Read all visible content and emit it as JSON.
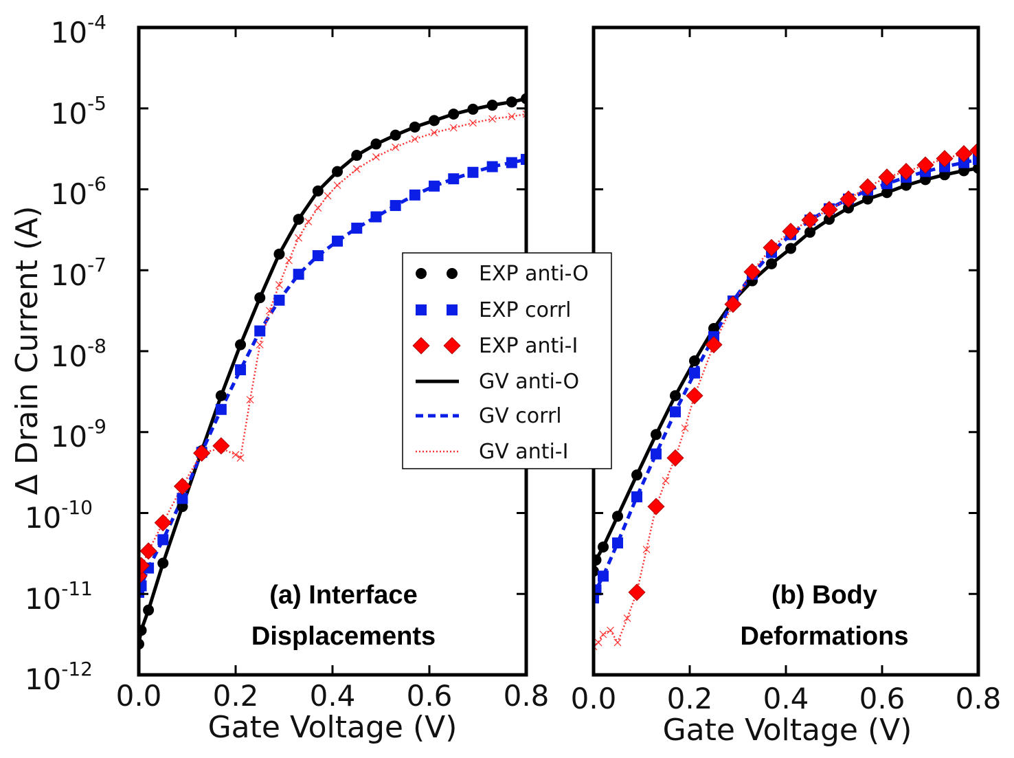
{
  "chart_data": [
    {
      "type": "line",
      "panel": "a",
      "title": "",
      "annotation": [
        "(a) Interface",
        "Displacements"
      ],
      "xlabel": "Gate Voltage (V)",
      "ylabel": "Δ Drain Current (A)",
      "xlim": [
        0.0,
        0.8
      ],
      "ylim_log10": [
        -12,
        -4
      ],
      "yscale": "log",
      "xticks": [
        "0.0",
        "0.2",
        "0.4",
        "0.6",
        "0.8"
      ],
      "yticks": [
        {
          "base": "10",
          "exp": "-4",
          "value": -4
        },
        {
          "base": "10",
          "exp": "-5",
          "value": -5
        },
        {
          "base": "10",
          "exp": "-6",
          "value": -6
        },
        {
          "base": "10",
          "exp": "-7",
          "value": -7
        },
        {
          "base": "10",
          "exp": "-8",
          "value": -8
        },
        {
          "base": "10",
          "exp": "-9",
          "value": -9
        },
        {
          "base": "10",
          "exp": "-10",
          "value": -10
        },
        {
          "base": "10",
          "exp": "-11",
          "value": -11
        },
        {
          "base": "10",
          "exp": "-12",
          "value": -12
        }
      ],
      "series": [
        {
          "name": "EXP anti-O",
          "kind": "markers",
          "marker": "circle",
          "color": "#000000",
          "x": [
            0.0,
            0.005,
            0.02,
            0.05,
            0.09,
            0.13,
            0.17,
            0.21,
            0.25,
            0.29,
            0.33,
            0.37,
            0.41,
            0.45,
            0.49,
            0.53,
            0.57,
            0.61,
            0.65,
            0.69,
            0.73,
            0.77,
            0.8
          ],
          "log10y": [
            -11.62,
            -11.45,
            -11.2,
            -10.62,
            -9.92,
            -9.23,
            -8.55,
            -7.92,
            -7.34,
            -6.8,
            -6.37,
            -6.02,
            -5.78,
            -5.58,
            -5.44,
            -5.33,
            -5.23,
            -5.15,
            -5.07,
            -5.01,
            -4.96,
            -4.92,
            -4.88
          ]
        },
        {
          "name": "EXP corrl",
          "kind": "markers",
          "marker": "square",
          "color": "#0b1ee6",
          "x": [
            0.0,
            0.005,
            0.02,
            0.05,
            0.09,
            0.13,
            0.17,
            0.21,
            0.25,
            0.29,
            0.33,
            0.37,
            0.41,
            0.45,
            0.49,
            0.53,
            0.57,
            0.61,
            0.65,
            0.69,
            0.73,
            0.77,
            0.8
          ],
          "log10y": [
            -10.98,
            -10.9,
            -10.68,
            -10.33,
            -9.82,
            -9.25,
            -8.72,
            -8.23,
            -7.75,
            -7.37,
            -7.05,
            -6.82,
            -6.64,
            -6.48,
            -6.34,
            -6.2,
            -6.07,
            -5.96,
            -5.87,
            -5.79,
            -5.72,
            -5.67,
            -5.63
          ]
        },
        {
          "name": "EXP anti-I",
          "kind": "markers",
          "marker": "diamond",
          "color": "#ff0000",
          "x": [
            0.0,
            0.005,
            0.02,
            0.05,
            0.09,
            0.13,
            0.17
          ],
          "log10y": [
            -10.78,
            -10.65,
            -10.47,
            -10.12,
            -9.67,
            -9.26,
            -9.17
          ]
        },
        {
          "name": "GV anti-O",
          "kind": "line",
          "style": "solid",
          "color": "#000000",
          "x": [
            0.0,
            0.005,
            0.02,
            0.05,
            0.09,
            0.13,
            0.17,
            0.21,
            0.25,
            0.29,
            0.33,
            0.37,
            0.41,
            0.45,
            0.49,
            0.53,
            0.57,
            0.61,
            0.65,
            0.69,
            0.73,
            0.77,
            0.8
          ],
          "log10y": [
            -11.62,
            -11.45,
            -11.2,
            -10.62,
            -9.92,
            -9.23,
            -8.55,
            -7.92,
            -7.34,
            -6.8,
            -6.37,
            -6.02,
            -5.78,
            -5.58,
            -5.44,
            -5.33,
            -5.23,
            -5.15,
            -5.07,
            -5.01,
            -4.96,
            -4.92,
            -4.88
          ]
        },
        {
          "name": "GV corrl",
          "kind": "line",
          "style": "dashed",
          "color": "#0b1ee6",
          "x": [
            0.0,
            0.005,
            0.02,
            0.05,
            0.09,
            0.13,
            0.17,
            0.21,
            0.25,
            0.29,
            0.33,
            0.37,
            0.41,
            0.45,
            0.49,
            0.53,
            0.57,
            0.61,
            0.65,
            0.69,
            0.73,
            0.77,
            0.8
          ],
          "log10y": [
            -10.98,
            -10.9,
            -10.68,
            -10.33,
            -9.82,
            -9.25,
            -8.72,
            -8.23,
            -7.75,
            -7.37,
            -7.05,
            -6.82,
            -6.64,
            -6.48,
            -6.34,
            -6.2,
            -6.07,
            -5.96,
            -5.87,
            -5.79,
            -5.72,
            -5.67,
            -5.63
          ]
        },
        {
          "name": "GV anti-I",
          "kind": "line",
          "style": "dotted",
          "color": "#ff3030",
          "x": [
            0.0,
            0.02,
            0.05,
            0.09,
            0.13,
            0.17,
            0.2,
            0.21,
            0.23,
            0.25,
            0.27,
            0.29,
            0.31,
            0.33,
            0.35,
            0.37,
            0.39,
            0.41,
            0.45,
            0.49,
            0.53,
            0.57,
            0.61,
            0.65,
            0.69,
            0.73,
            0.77,
            0.8
          ],
          "log10y": [
            -10.75,
            -10.47,
            -10.12,
            -9.67,
            -9.26,
            -9.2,
            -9.28,
            -9.32,
            -8.6,
            -7.92,
            -7.5,
            -7.18,
            -6.88,
            -6.6,
            -6.4,
            -6.23,
            -6.08,
            -5.95,
            -5.75,
            -5.6,
            -5.48,
            -5.38,
            -5.3,
            -5.24,
            -5.18,
            -5.13,
            -5.1,
            -5.07
          ]
        }
      ]
    },
    {
      "type": "line",
      "panel": "b",
      "title": "",
      "annotation": [
        "(b) Body",
        "Deformations"
      ],
      "xlabel": "Gate Voltage (V)",
      "ylabel": "",
      "xlim": [
        0.0,
        0.8
      ],
      "ylim_log10": [
        -12,
        -4
      ],
      "yscale": "log",
      "xticks": [
        "0.0",
        "0.2",
        "0.4",
        "0.6",
        "0.8"
      ],
      "series": [
        {
          "name": "EXP anti-O",
          "kind": "markers",
          "marker": "circle",
          "color": "#000000",
          "x": [
            0.0,
            0.005,
            0.02,
            0.05,
            0.09,
            0.13,
            0.17,
            0.21,
            0.25,
            0.29,
            0.33,
            0.37,
            0.41,
            0.45,
            0.49,
            0.53,
            0.57,
            0.61,
            0.65,
            0.69,
            0.73,
            0.77,
            0.8
          ],
          "log10y": [
            -10.72,
            -10.58,
            -10.42,
            -10.04,
            -9.53,
            -9.03,
            -8.55,
            -8.12,
            -7.72,
            -7.38,
            -7.13,
            -6.92,
            -6.73,
            -6.53,
            -6.37,
            -6.23,
            -6.12,
            -6.04,
            -5.95,
            -5.88,
            -5.82,
            -5.77,
            -5.74
          ]
        },
        {
          "name": "EXP corrl",
          "kind": "markers",
          "marker": "square",
          "color": "#0b1ee6",
          "x": [
            0.0,
            0.005,
            0.02,
            0.05,
            0.09,
            0.13,
            0.17,
            0.21,
            0.25,
            0.29,
            0.33,
            0.37,
            0.41,
            0.45,
            0.49,
            0.53,
            0.57,
            0.61,
            0.65,
            0.69,
            0.73,
            0.77,
            0.8
          ],
          "log10y": [
            -11.05,
            -10.95,
            -10.78,
            -10.37,
            -9.8,
            -9.27,
            -8.75,
            -8.27,
            -7.82,
            -7.38,
            -7.05,
            -6.78,
            -6.56,
            -6.38,
            -6.24,
            -6.12,
            -6.01,
            -5.93,
            -5.85,
            -5.78,
            -5.72,
            -5.67,
            -5.63
          ]
        },
        {
          "name": "EXP anti-I",
          "kind": "markers",
          "marker": "diamond",
          "color": "#ff0000",
          "x": [
            0.09,
            0.13,
            0.17,
            0.21,
            0.25,
            0.29,
            0.33,
            0.37,
            0.41,
            0.45,
            0.49,
            0.53,
            0.57,
            0.61,
            0.65,
            0.69,
            0.73,
            0.77,
            0.8
          ],
          "log10y": [
            -10.98,
            -9.92,
            -9.32,
            -8.55,
            -7.92,
            -7.42,
            -7.02,
            -6.72,
            -6.52,
            -6.38,
            -6.25,
            -6.12,
            -5.97,
            -5.85,
            -5.78,
            -5.7,
            -5.62,
            -5.56,
            -5.52
          ]
        },
        {
          "name": "GV anti-O",
          "kind": "line",
          "style": "solid",
          "color": "#000000",
          "x": [
            0.0,
            0.005,
            0.02,
            0.05,
            0.09,
            0.13,
            0.17,
            0.21,
            0.25,
            0.29,
            0.33,
            0.37,
            0.41,
            0.45,
            0.49,
            0.53,
            0.57,
            0.61,
            0.65,
            0.69,
            0.73,
            0.77,
            0.8
          ],
          "log10y": [
            -10.72,
            -10.58,
            -10.42,
            -10.04,
            -9.53,
            -9.03,
            -8.55,
            -8.12,
            -7.72,
            -7.38,
            -7.13,
            -6.92,
            -6.73,
            -6.53,
            -6.37,
            -6.23,
            -6.12,
            -6.04,
            -5.95,
            -5.88,
            -5.82,
            -5.77,
            -5.74
          ]
        },
        {
          "name": "GV corrl",
          "kind": "line",
          "style": "dashed",
          "color": "#0b1ee6",
          "x": [
            0.0,
            0.005,
            0.02,
            0.05,
            0.09,
            0.13,
            0.17,
            0.21,
            0.25,
            0.29,
            0.33,
            0.37,
            0.41,
            0.45,
            0.49,
            0.53,
            0.57,
            0.61,
            0.65,
            0.69,
            0.73,
            0.77,
            0.8
          ],
          "log10y": [
            -11.05,
            -10.95,
            -10.78,
            -10.37,
            -9.8,
            -9.27,
            -8.75,
            -8.27,
            -7.82,
            -7.38,
            -7.05,
            -6.78,
            -6.56,
            -6.38,
            -6.24,
            -6.12,
            -6.01,
            -5.93,
            -5.85,
            -5.78,
            -5.72,
            -5.67,
            -5.63
          ]
        },
        {
          "name": "GV anti-I",
          "kind": "line",
          "style": "dotted",
          "color": "#ff3030",
          "x": [
            0.0,
            0.01,
            0.02,
            0.035,
            0.05,
            0.07,
            0.09,
            0.11,
            0.13,
            0.15,
            0.17,
            0.19,
            0.21,
            0.25,
            0.29,
            0.33,
            0.37,
            0.41,
            0.45,
            0.49,
            0.53,
            0.57,
            0.61,
            0.65,
            0.69,
            0.73,
            0.77,
            0.8
          ],
          "log10y": [
            -11.65,
            -11.6,
            -11.5,
            -11.45,
            -11.6,
            -11.3,
            -10.98,
            -10.45,
            -9.92,
            -9.6,
            -9.32,
            -8.95,
            -8.55,
            -7.92,
            -7.42,
            -7.02,
            -6.72,
            -6.52,
            -6.38,
            -6.25,
            -6.12,
            -5.97,
            -5.85,
            -5.78,
            -5.7,
            -5.62,
            -5.56,
            -5.52
          ]
        }
      ]
    }
  ],
  "legend": {
    "placement": "center",
    "entries": [
      {
        "label": "EXP anti-O"
      },
      {
        "label": "EXP corrl"
      },
      {
        "label": "EXP anti-I"
      },
      {
        "label": "GV anti-O"
      },
      {
        "label": "GV corrl"
      },
      {
        "label": "GV anti-I"
      }
    ]
  }
}
